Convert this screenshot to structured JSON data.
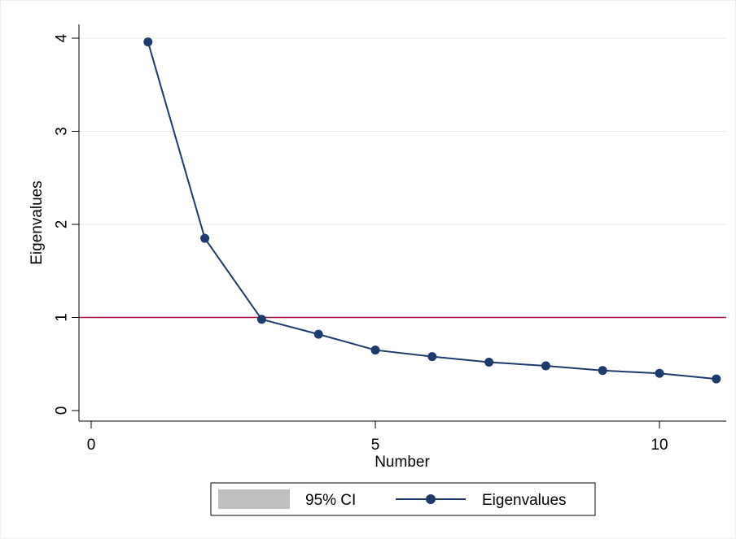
{
  "chart_data": {
    "type": "line",
    "xlabel": "Number",
    "ylabel": "Eigenvalues",
    "xlim": [
      0,
      11
    ],
    "ylim": [
      0,
      4
    ],
    "xticks": [
      0,
      5,
      10
    ],
    "yticks": [
      0,
      1,
      2,
      3,
      4
    ],
    "grid": true,
    "reference_line": {
      "y": 1,
      "color": "#a3183f"
    },
    "series": [
      {
        "name": "Eigenvalues",
        "color": "#1f3a6e",
        "x": [
          1,
          2,
          3,
          4,
          5,
          6,
          7,
          8,
          9,
          10,
          11
        ],
        "values": [
          3.96,
          1.85,
          0.98,
          0.82,
          0.65,
          0.58,
          0.52,
          0.48,
          0.43,
          0.4,
          0.34
        ]
      }
    ],
    "legend": {
      "placement": "bottom",
      "items": [
        {
          "label": "95% CI",
          "swatch": "area",
          "color": "#bfbfbf"
        },
        {
          "label": "Eigenvalues",
          "swatch": "line-marker",
          "color": "#1f3a6e"
        }
      ]
    }
  }
}
